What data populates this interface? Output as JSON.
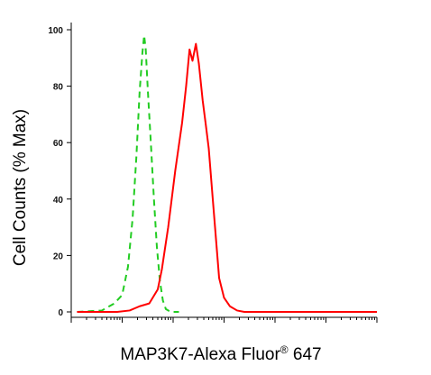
{
  "chart_data": {
    "type": "line",
    "title": "",
    "xlabel": "MAP3K7-Alexa Fluor",
    "xlabel_superscript": "®",
    "xlabel_suffix": " 647",
    "ylabel": "Cell Counts (% Max)",
    "x_scale": "log",
    "xlim": [
      1,
      1000000
    ],
    "ylim": [
      0,
      100
    ],
    "y_ticks": [
      0,
      20,
      40,
      60,
      80,
      100
    ],
    "y_tick_labels": [
      "0",
      "20",
      "40",
      "60",
      "80",
      "100"
    ],
    "x_tick_labels_shown": false,
    "grid": false,
    "legend": "none",
    "series": [
      {
        "style": "dashed",
        "color": "#22cc22",
        "points": [
          [
            1.3,
            0
          ],
          [
            4,
            0.5
          ],
          [
            7,
            3
          ],
          [
            10,
            6
          ],
          [
            13,
            16
          ],
          [
            16,
            33
          ],
          [
            19,
            55
          ],
          [
            22,
            78
          ],
          [
            25,
            92
          ],
          [
            27,
            98
          ],
          [
            29,
            93
          ],
          [
            32,
            78
          ],
          [
            36,
            62
          ],
          [
            42,
            40
          ],
          [
            48,
            23
          ],
          [
            55,
            11
          ],
          [
            63,
            4
          ],
          [
            72,
            1
          ],
          [
            90,
            0
          ],
          [
            130,
            0
          ]
        ]
      },
      {
        "style": "solid",
        "color": "#ff0000",
        "points": [
          [
            1.3,
            0
          ],
          [
            8,
            0
          ],
          [
            14,
            0.5
          ],
          [
            22,
            2
          ],
          [
            34,
            3
          ],
          [
            50,
            8
          ],
          [
            60,
            15
          ],
          [
            80,
            30
          ],
          [
            110,
            50
          ],
          [
            150,
            67
          ],
          [
            180,
            80
          ],
          [
            210,
            93
          ],
          [
            240,
            89
          ],
          [
            280,
            95
          ],
          [
            320,
            88
          ],
          [
            380,
            75
          ],
          [
            440,
            66
          ],
          [
            500,
            58
          ],
          [
            600,
            40
          ],
          [
            700,
            25
          ],
          [
            800,
            12
          ],
          [
            1000,
            5
          ],
          [
            1300,
            2
          ],
          [
            1800,
            0.5
          ],
          [
            2500,
            0
          ],
          [
            1000000,
            0
          ]
        ]
      }
    ]
  }
}
